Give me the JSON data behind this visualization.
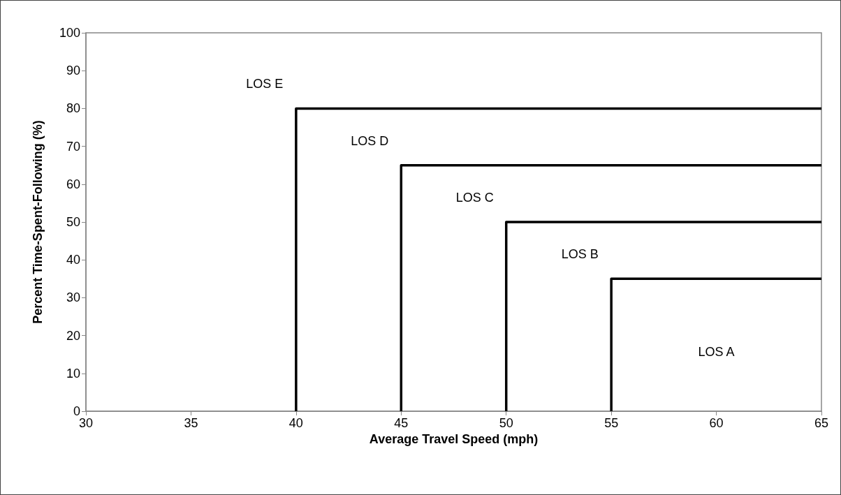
{
  "chart_data": {
    "type": "line",
    "xlabel": "Average Travel Speed (mph)",
    "ylabel": "Percent Time-Spent-Following (%)",
    "xlim": [
      30,
      65
    ],
    "xticks": [
      30,
      35,
      40,
      45,
      50,
      55,
      60,
      65
    ],
    "ylim": [
      0,
      100
    ],
    "yticks": [
      0,
      10,
      20,
      30,
      40,
      50,
      60,
      70,
      80,
      90,
      100
    ],
    "grid": false,
    "marker": "none",
    "line_style": "solid",
    "series": [
      {
        "color": "#000000",
        "x": [
          40,
          40,
          65
        ],
        "values": [
          0,
          80,
          80
        ]
      },
      {
        "color": "#000000",
        "x": [
          45,
          45,
          65
        ],
        "values": [
          0,
          65,
          65
        ]
      },
      {
        "color": "#000000",
        "x": [
          50,
          50,
          65
        ],
        "values": [
          0,
          50,
          50
        ]
      },
      {
        "color": "#000000",
        "x": [
          55,
          55,
          65
        ],
        "values": [
          0,
          35,
          35
        ]
      }
    ],
    "annotations": [
      "LOS E",
      "LOS D",
      "LOS C",
      "LOS B",
      "LOS A"
    ]
  }
}
